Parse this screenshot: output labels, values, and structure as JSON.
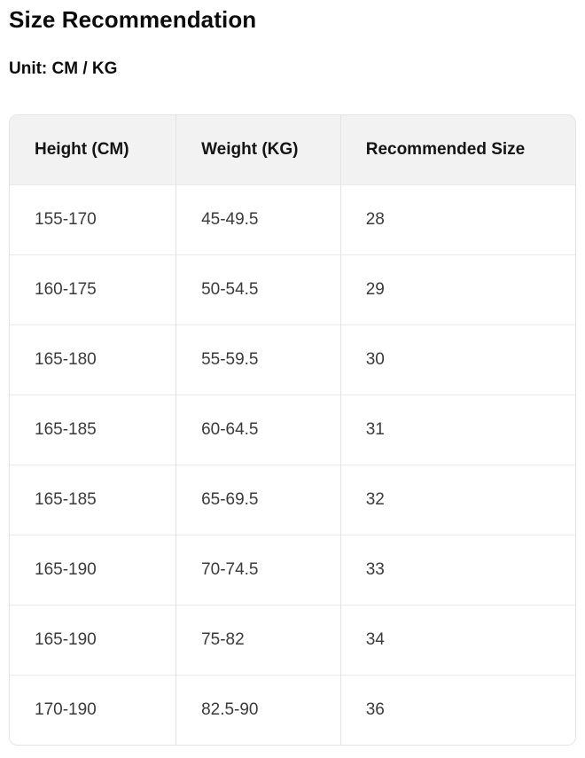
{
  "page": {
    "title": "Size Recommendation",
    "subtitle": "Unit: CM / KG"
  },
  "table": {
    "columns": [
      "Height (CM)",
      "Weight (KG)",
      "Recommended Size"
    ],
    "rows": [
      [
        "155-170",
        "45-49.5",
        "28"
      ],
      [
        "160-175",
        "50-54.5",
        "29"
      ],
      [
        "165-180",
        "55-59.5",
        "30"
      ],
      [
        "165-185",
        "60-64.5",
        "31"
      ],
      [
        "165-185",
        "65-69.5",
        "32"
      ],
      [
        "165-190",
        "70-74.5",
        "33"
      ],
      [
        "165-190",
        "75-82",
        "34"
      ],
      [
        "170-190",
        "82.5-90",
        "36"
      ]
    ]
  },
  "colors": {
    "header_bg": "#f2f2f2",
    "outer_border": "#e3e3e3",
    "row_divider": "#e9e9e9",
    "header_text": "#141414",
    "body_text": "#3b3b3b",
    "heading_text": "#0c0c0c",
    "page_bg": "#ffffff"
  }
}
